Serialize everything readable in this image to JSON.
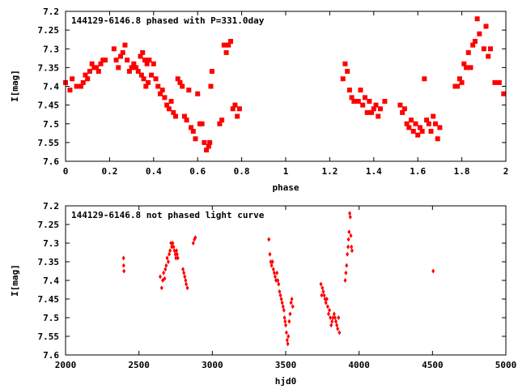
{
  "chart_data": [
    {
      "type": "scatter",
      "title": "144129-6146.8 phased with P=331.0day",
      "xlabel": "phase",
      "ylabel": "I[mag]",
      "xlim": [
        0,
        2
      ],
      "ylim": [
        7.2,
        7.6
      ],
      "y_inverted": true,
      "grid": false,
      "marker": "square",
      "color": "#ff0000",
      "x_ticks": [
        "0",
        "0.2",
        "0.4",
        "0.6",
        "0.8",
        "1",
        "1.2",
        "1.4",
        "1.6",
        "1.8",
        "2"
      ],
      "y_ticks": [
        "7.2",
        "7.25",
        "7.3",
        "7.35",
        "7.4",
        "7.45",
        "7.5",
        "7.55",
        "7.6"
      ],
      "series": [
        {
          "points": [
            [
              0.0,
              7.39
            ],
            [
              0.02,
              7.41
            ],
            [
              0.03,
              7.38
            ],
            [
              0.05,
              7.4
            ],
            [
              0.07,
              7.4
            ],
            [
              0.08,
              7.39
            ],
            [
              0.09,
              7.37
            ],
            [
              0.1,
              7.38
            ],
            [
              0.11,
              7.36
            ],
            [
              0.12,
              7.34
            ],
            [
              0.13,
              7.35
            ],
            [
              0.14,
              7.35
            ],
            [
              0.15,
              7.36
            ],
            [
              0.16,
              7.34
            ],
            [
              0.17,
              7.33
            ],
            [
              0.18,
              7.33
            ],
            [
              0.22,
              7.3
            ],
            [
              0.23,
              7.33
            ],
            [
              0.24,
              7.35
            ],
            [
              0.25,
              7.32
            ],
            [
              0.26,
              7.31
            ],
            [
              0.27,
              7.29
            ],
            [
              0.28,
              7.33
            ],
            [
              0.29,
              7.36
            ],
            [
              0.3,
              7.35
            ],
            [
              0.31,
              7.34
            ],
            [
              0.32,
              7.35
            ],
            [
              0.33,
              7.36
            ],
            [
              0.34,
              7.32
            ],
            [
              0.345,
              7.37
            ],
            [
              0.35,
              7.31
            ],
            [
              0.355,
              7.38
            ],
            [
              0.36,
              7.33
            ],
            [
              0.365,
              7.4
            ],
            [
              0.37,
              7.34
            ],
            [
              0.375,
              7.39
            ],
            [
              0.38,
              7.33
            ],
            [
              0.39,
              7.37
            ],
            [
              0.4,
              7.34
            ],
            [
              0.41,
              7.38
            ],
            [
              0.42,
              7.4
            ],
            [
              0.43,
              7.42
            ],
            [
              0.44,
              7.41
            ],
            [
              0.45,
              7.43
            ],
            [
              0.46,
              7.45
            ],
            [
              0.47,
              7.46
            ],
            [
              0.48,
              7.44
            ],
            [
              0.49,
              7.47
            ],
            [
              0.5,
              7.48
            ],
            [
              0.51,
              7.38
            ],
            [
              0.52,
              7.39
            ],
            [
              0.53,
              7.4
            ],
            [
              0.54,
              7.48
            ],
            [
              0.55,
              7.49
            ],
            [
              0.56,
              7.41
            ],
            [
              0.57,
              7.51
            ],
            [
              0.58,
              7.52
            ],
            [
              0.59,
              7.54
            ],
            [
              0.6,
              7.42
            ],
            [
              0.61,
              7.5
            ],
            [
              0.62,
              7.5
            ],
            [
              0.63,
              7.55
            ],
            [
              0.64,
              7.57
            ],
            [
              0.65,
              7.56
            ],
            [
              0.655,
              7.55
            ],
            [
              0.66,
              7.4
            ],
            [
              0.665,
              7.36
            ],
            [
              0.7,
              7.5
            ],
            [
              0.71,
              7.49
            ],
            [
              0.72,
              7.29
            ],
            [
              0.73,
              7.31
            ],
            [
              0.74,
              7.29
            ],
            [
              0.75,
              7.28
            ],
            [
              0.76,
              7.46
            ],
            [
              0.77,
              7.45
            ],
            [
              0.78,
              7.48
            ],
            [
              0.79,
              7.46
            ],
            [
              1.26,
              7.38
            ],
            [
              1.27,
              7.34
            ],
            [
              1.28,
              7.36
            ],
            [
              1.29,
              7.41
            ],
            [
              1.3,
              7.43
            ],
            [
              1.31,
              7.44
            ],
            [
              1.33,
              7.44
            ],
            [
              1.34,
              7.41
            ],
            [
              1.35,
              7.45
            ],
            [
              1.36,
              7.43
            ],
            [
              1.37,
              7.47
            ],
            [
              1.38,
              7.44
            ],
            [
              1.39,
              7.47
            ],
            [
              1.4,
              7.46
            ],
            [
              1.41,
              7.45
            ],
            [
              1.42,
              7.48
            ],
            [
              1.43,
              7.46
            ],
            [
              1.45,
              7.44
            ],
            [
              1.52,
              7.45
            ],
            [
              1.53,
              7.47
            ],
            [
              1.54,
              7.46
            ],
            [
              1.55,
              7.5
            ],
            [
              1.56,
              7.51
            ],
            [
              1.57,
              7.49
            ],
            [
              1.58,
              7.52
            ],
            [
              1.59,
              7.5
            ],
            [
              1.6,
              7.53
            ],
            [
              1.61,
              7.51
            ],
            [
              1.62,
              7.52
            ],
            [
              1.63,
              7.38
            ],
            [
              1.64,
              7.49
            ],
            [
              1.65,
              7.5
            ],
            [
              1.66,
              7.52
            ],
            [
              1.67,
              7.48
            ],
            [
              1.68,
              7.5
            ],
            [
              1.69,
              7.54
            ],
            [
              1.7,
              7.51
            ],
            [
              1.77,
              7.4
            ],
            [
              1.78,
              7.4
            ],
            [
              1.79,
              7.38
            ],
            [
              1.8,
              7.39
            ],
            [
              1.81,
              7.34
            ],
            [
              1.82,
              7.35
            ],
            [
              1.83,
              7.31
            ],
            [
              1.84,
              7.35
            ],
            [
              1.85,
              7.29
            ],
            [
              1.86,
              7.28
            ],
            [
              1.87,
              7.22
            ],
            [
              1.88,
              7.26
            ],
            [
              1.9,
              7.3
            ],
            [
              1.91,
              7.24
            ],
            [
              1.92,
              7.32
            ],
            [
              1.93,
              7.3
            ],
            [
              1.95,
              7.39
            ],
            [
              1.97,
              7.39
            ],
            [
              1.99,
              7.42
            ]
          ]
        }
      ]
    },
    {
      "type": "scatter",
      "title": "144129-6146.8 not phased light curve",
      "xlabel": "hjd0",
      "ylabel": "I[mag]",
      "xlim": [
        2000,
        5000
      ],
      "ylim": [
        7.2,
        7.6
      ],
      "y_inverted": true,
      "grid": false,
      "marker": "diamond",
      "color": "#ff0000",
      "x_ticks": [
        "2000",
        "2500",
        "3000",
        "3500",
        "4000",
        "4500",
        "5000"
      ],
      "y_ticks": [
        "7.2",
        "7.25",
        "7.3",
        "7.35",
        "7.4",
        "7.45",
        "7.5",
        "7.55",
        "7.6"
      ],
      "series": [
        {
          "points": [
            [
              2395,
              7.34
            ],
            [
              2396,
              7.36
            ],
            [
              2398,
              7.375
            ],
            [
              2645,
              7.39
            ],
            [
              2655,
              7.42
            ],
            [
              2662,
              7.4
            ],
            [
              2668,
              7.38
            ],
            [
              2675,
              7.395
            ],
            [
              2680,
              7.37
            ],
            [
              2686,
              7.36
            ],
            [
              2692,
              7.34
            ],
            [
              2700,
              7.35
            ],
            [
              2706,
              7.33
            ],
            [
              2712,
              7.32
            ],
            [
              2718,
              7.3
            ],
            [
              2724,
              7.31
            ],
            [
              2730,
              7.3
            ],
            [
              2736,
              7.31
            ],
            [
              2742,
              7.32
            ],
            [
              2748,
              7.33
            ],
            [
              2752,
              7.34
            ],
            [
              2756,
              7.32
            ],
            [
              2760,
              7.33
            ],
            [
              2765,
              7.34
            ],
            [
              2800,
              7.37
            ],
            [
              2806,
              7.38
            ],
            [
              2812,
              7.39
            ],
            [
              2818,
              7.4
            ],
            [
              2822,
              7.41
            ],
            [
              2830,
              7.42
            ],
            [
              2870,
              7.3
            ],
            [
              2878,
              7.29
            ],
            [
              2884,
              7.285
            ],
            [
              3385,
              7.29
            ],
            [
              3392,
              7.33
            ],
            [
              3398,
              7.35
            ],
            [
              3404,
              7.36
            ],
            [
              3410,
              7.35
            ],
            [
              3416,
              7.37
            ],
            [
              3422,
              7.38
            ],
            [
              3428,
              7.39
            ],
            [
              3434,
              7.4
            ],
            [
              3440,
              7.38
            ],
            [
              3446,
              7.4
            ],
            [
              3452,
              7.41
            ],
            [
              3458,
              7.43
            ],
            [
              3464,
              7.44
            ],
            [
              3470,
              7.45
            ],
            [
              3476,
              7.46
            ],
            [
              3482,
              7.47
            ],
            [
              3488,
              7.48
            ],
            [
              3492,
              7.5
            ],
            [
              3496,
              7.51
            ],
            [
              3500,
              7.52
            ],
            [
              3505,
              7.54
            ],
            [
              3510,
              7.56
            ],
            [
              3514,
              7.57
            ],
            [
              3518,
              7.55
            ],
            [
              3524,
              7.51
            ],
            [
              3530,
              7.49
            ],
            [
              3536,
              7.46
            ],
            [
              3542,
              7.45
            ],
            [
              3548,
              7.47
            ],
            [
              3740,
              7.41
            ],
            [
              3745,
              7.44
            ],
            [
              3750,
              7.42
            ],
            [
              3756,
              7.43
            ],
            [
              3762,
              7.44
            ],
            [
              3768,
              7.45
            ],
            [
              3774,
              7.46
            ],
            [
              3780,
              7.45
            ],
            [
              3786,
              7.47
            ],
            [
              3792,
              7.49
            ],
            [
              3798,
              7.48
            ],
            [
              3804,
              7.5
            ],
            [
              3810,
              7.52
            ],
            [
              3816,
              7.51
            ],
            [
              3822,
              7.5
            ],
            [
              3830,
              7.49
            ],
            [
              3836,
              7.5
            ],
            [
              3842,
              7.51
            ],
            [
              3848,
              7.52
            ],
            [
              3854,
              7.53
            ],
            [
              3860,
              7.5
            ],
            [
              3866,
              7.54
            ],
            [
              3905,
              7.4
            ],
            [
              3910,
              7.38
            ],
            [
              3915,
              7.36
            ],
            [
              3920,
              7.33
            ],
            [
              3925,
              7.31
            ],
            [
              3928,
              7.29
            ],
            [
              3932,
              7.27
            ],
            [
              3936,
              7.22
            ],
            [
              3940,
              7.23
            ],
            [
              3944,
              7.28
            ],
            [
              3948,
              7.31
            ],
            [
              3952,
              7.32
            ],
            [
              4505,
              7.375
            ]
          ]
        }
      ]
    }
  ]
}
